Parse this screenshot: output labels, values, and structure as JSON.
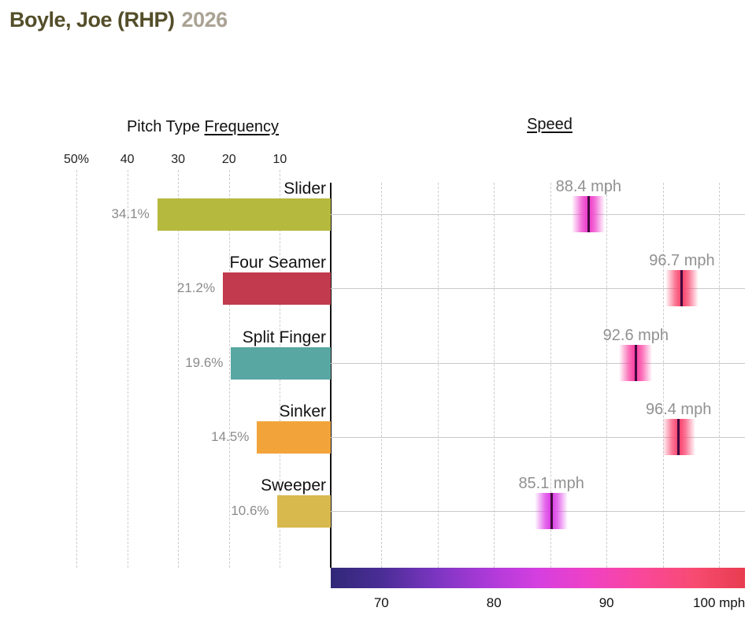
{
  "header": {
    "player": "Boyle, Joe (RHP)",
    "season": "2026"
  },
  "panels": {
    "frequency_title_prefix": "Pitch Type ",
    "frequency_title_underlined": "Frequency",
    "speed_title": "Speed"
  },
  "chart_data": {
    "type": "bar",
    "title": "Pitch Type Frequency and Speed",
    "categories": [
      "Slider",
      "Four Seamer",
      "Split Finger",
      "Sinker",
      "Sweeper"
    ],
    "series": [
      {
        "name": "Frequency",
        "unit": "%",
        "values": [
          34.1,
          21.2,
          19.6,
          14.5,
          10.6
        ],
        "labels": [
          "34.1%",
          "21.2%",
          "19.6%",
          "14.5%",
          "10.6%"
        ]
      },
      {
        "name": "Speed",
        "unit": "mph",
        "values": [
          88.4,
          96.7,
          92.6,
          96.4,
          85.1
        ],
        "labels": [
          "88.4 mph",
          "96.7 mph",
          "92.6 mph",
          "96.4 mph",
          "85.1 mph"
        ]
      }
    ],
    "frequency_axis": {
      "ticks": [
        50,
        40,
        30,
        20,
        10
      ],
      "tick_labels": [
        "50%",
        "40",
        "30",
        "20",
        "10"
      ],
      "direction": "right-to-left",
      "gridlines": "dashed"
    },
    "speed_axis": {
      "ticks": [
        70,
        80,
        90,
        100
      ],
      "tick_labels": [
        "70",
        "80",
        "90",
        "100 mph"
      ],
      "range": [
        65.5,
        102.3
      ],
      "minor_gridline_step": 5
    },
    "bar_colors": [
      "#b5b93d",
      "#c13a4d",
      "#58a7a2",
      "#f2a43b",
      "#d8b94e"
    ],
    "marker_colors": [
      "#ee3ecb",
      "#f8486f",
      "#fa44a3",
      "#f84772",
      "#dc41e6"
    ],
    "colorbar_gradient": [
      "#312878",
      "#4b2d96",
      "#7a35c0",
      "#ab3ad8",
      "#d53fe0",
      "#ef41c4",
      "#f9479b",
      "#f84b72",
      "#e73c4f"
    ]
  },
  "colors": {
    "title": "#544e2a",
    "season": "#aaa394",
    "pitch_label": "#111111",
    "value_label": "#8b8b8b",
    "speed_label": "#919191",
    "tick_label": "#222222",
    "colorbar_tick": "#111111",
    "gridline": "#cccccc",
    "row_line": "#c9c9c9",
    "axis_line": "#111111",
    "marker_line": "#42093f"
  }
}
